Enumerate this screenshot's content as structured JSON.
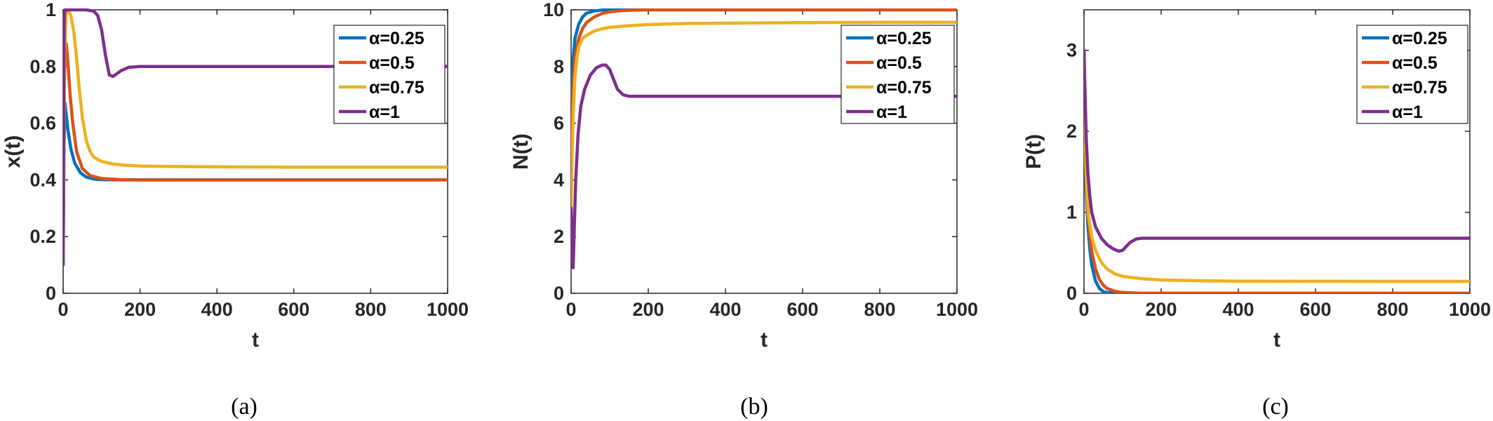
{
  "chart_data": [
    {
      "type": "line",
      "panel": "(a)",
      "xlabel": "t",
      "ylabel": "x(t)",
      "xlim": [
        0,
        1000
      ],
      "ylim": [
        0,
        1
      ],
      "xticks": [
        "0",
        "200",
        "400",
        "600",
        "800",
        "1000"
      ],
      "yticks": [
        "0",
        "0.2",
        "0.4",
        "0.6",
        "0.8",
        "1"
      ],
      "legend_position": "top-right",
      "series": [
        {
          "name": "α=0.25",
          "color": "#0072BD",
          "x": [
            0,
            2,
            5,
            8,
            12,
            20,
            30,
            45,
            60,
            80,
            100,
            150,
            200,
            300,
            500,
            1000
          ],
          "y": [
            0.1,
            0.5,
            0.67,
            0.63,
            0.58,
            0.51,
            0.46,
            0.425,
            0.41,
            0.403,
            0.401,
            0.4,
            0.4,
            0.4,
            0.4,
            0.4
          ]
        },
        {
          "name": "α=0.5",
          "color": "#D95319",
          "x": [
            0,
            2,
            4,
            8,
            12,
            18,
            25,
            35,
            50,
            70,
            100,
            150,
            200,
            300,
            500,
            1000
          ],
          "y": [
            0.1,
            0.6,
            0.8,
            0.88,
            0.82,
            0.7,
            0.6,
            0.5,
            0.44,
            0.415,
            0.405,
            0.401,
            0.4,
            0.4,
            0.4,
            0.4
          ]
        },
        {
          "name": "α=0.75",
          "color": "#EDB120",
          "x": [
            0,
            2,
            4,
            8,
            12,
            20,
            28,
            35,
            42,
            50,
            60,
            70,
            80,
            100,
            130,
            160,
            200,
            300,
            400,
            600,
            800,
            1000
          ],
          "y": [
            0.1,
            0.55,
            0.85,
            0.99,
            1.0,
            0.98,
            0.92,
            0.83,
            0.72,
            0.62,
            0.54,
            0.5,
            0.48,
            0.465,
            0.456,
            0.452,
            0.449,
            0.447,
            0.446,
            0.445,
            0.445,
            0.445
          ]
        },
        {
          "name": "α=1",
          "color": "#7E2F8E",
          "x": [
            0,
            1,
            2,
            3,
            5,
            10,
            20,
            60,
            80,
            90,
            100,
            110,
            120,
            130,
            150,
            170,
            200,
            300,
            500,
            1000
          ],
          "y": [
            0.1,
            0.4,
            0.8,
            0.98,
            1.0,
            1.0,
            1.0,
            1.0,
            0.995,
            0.98,
            0.93,
            0.84,
            0.77,
            0.765,
            0.785,
            0.797,
            0.8,
            0.8,
            0.8,
            0.8
          ]
        }
      ]
    },
    {
      "type": "line",
      "panel": "(b)",
      "xlabel": "t",
      "ylabel": "N(t)",
      "xlim": [
        0,
        1000
      ],
      "ylim": [
        0,
        10
      ],
      "xticks": [
        "0",
        "200",
        "400",
        "600",
        "800",
        "1000"
      ],
      "yticks": [
        "0",
        "2",
        "4",
        "6",
        "8",
        "10"
      ],
      "legend_position": "top-right",
      "series": [
        {
          "name": "α=0.25",
          "color": "#0072BD",
          "x": [
            0,
            2,
            5,
            10,
            20,
            30,
            40,
            60,
            80,
            100,
            150,
            200,
            1000
          ],
          "y": [
            3,
            6.5,
            8.2,
            9.0,
            9.5,
            9.75,
            9.88,
            9.96,
            9.99,
            10,
            10,
            10,
            10
          ]
        },
        {
          "name": "α=0.5",
          "color": "#D95319",
          "x": [
            0,
            2,
            5,
            10,
            20,
            30,
            40,
            60,
            80,
            100,
            130,
            160,
            200,
            1000
          ],
          "y": [
            3,
            5.5,
            7.2,
            8.3,
            9.0,
            9.35,
            9.55,
            9.75,
            9.87,
            9.93,
            9.97,
            9.99,
            10,
            10
          ]
        },
        {
          "name": "α=0.75",
          "color": "#EDB120",
          "x": [
            0,
            3,
            6,
            10,
            15,
            20,
            30,
            40,
            60,
            80,
            100,
            150,
            200,
            300,
            400,
            600,
            800,
            1000
          ],
          "y": [
            3,
            5.0,
            6.5,
            7.6,
            8.3,
            8.7,
            9.0,
            9.1,
            9.25,
            9.33,
            9.38,
            9.44,
            9.48,
            9.52,
            9.53,
            9.55,
            9.56,
            9.56
          ]
        },
        {
          "name": "α=1",
          "color": "#7E2F8E",
          "x": [
            0,
            2,
            4,
            5,
            6,
            8,
            12,
            18,
            25,
            35,
            50,
            65,
            80,
            90,
            100,
            110,
            120,
            135,
            150,
            175,
            200,
            300,
            500,
            1000
          ],
          "y": [
            3,
            2.0,
            1.1,
            0.9,
            1.2,
            2.2,
            4.0,
            5.6,
            6.6,
            7.2,
            7.7,
            7.95,
            8.05,
            8.05,
            7.9,
            7.55,
            7.2,
            7.0,
            6.95,
            6.95,
            6.95,
            6.95,
            6.95,
            6.95
          ]
        }
      ]
    },
    {
      "type": "line",
      "panel": "(c)",
      "xlabel": "t",
      "ylabel": "P(t)",
      "xlim": [
        0,
        1000
      ],
      "ylim": [
        0,
        3.5
      ],
      "xticks": [
        "0",
        "200",
        "400",
        "600",
        "800",
        "1000"
      ],
      "yticks": [
        "0",
        "1",
        "2",
        "3"
      ],
      "legend_position": "top-right",
      "series": [
        {
          "name": "α=0.25",
          "color": "#0072BD",
          "x": [
            0,
            2,
            5,
            10,
            15,
            20,
            30,
            40,
            50,
            60,
            80,
            1000
          ],
          "y": [
            3,
            2.0,
            1.35,
            0.85,
            0.55,
            0.35,
            0.15,
            0.06,
            0.02,
            0.01,
            0,
            0
          ]
        },
        {
          "name": "α=0.5",
          "color": "#D95319",
          "x": [
            0,
            2,
            5,
            10,
            15,
            20,
            30,
            40,
            50,
            60,
            80,
            100,
            150,
            1000
          ],
          "y": [
            3,
            2.1,
            1.5,
            1.0,
            0.72,
            0.52,
            0.3,
            0.17,
            0.1,
            0.06,
            0.025,
            0.01,
            0,
            0
          ]
        },
        {
          "name": "α=0.75",
          "color": "#EDB120",
          "x": [
            0,
            3,
            7,
            12,
            20,
            30,
            45,
            60,
            80,
            100,
            150,
            200,
            300,
            400,
            600,
            800,
            1000
          ],
          "y": [
            3,
            2.0,
            1.3,
            0.95,
            0.7,
            0.53,
            0.38,
            0.3,
            0.24,
            0.21,
            0.18,
            0.165,
            0.155,
            0.15,
            0.148,
            0.147,
            0.147
          ]
        },
        {
          "name": "α=1",
          "color": "#7E2F8E",
          "x": [
            0,
            3,
            6,
            10,
            15,
            20,
            30,
            45,
            60,
            75,
            90,
            100,
            110,
            120,
            135,
            150,
            170,
            200,
            300,
            500,
            1000
          ],
          "y": [
            3,
            2.4,
            1.9,
            1.5,
            1.2,
            1.0,
            0.82,
            0.68,
            0.6,
            0.55,
            0.52,
            0.53,
            0.58,
            0.63,
            0.67,
            0.68,
            0.68,
            0.68,
            0.68,
            0.68,
            0.68
          ]
        }
      ]
    }
  ]
}
